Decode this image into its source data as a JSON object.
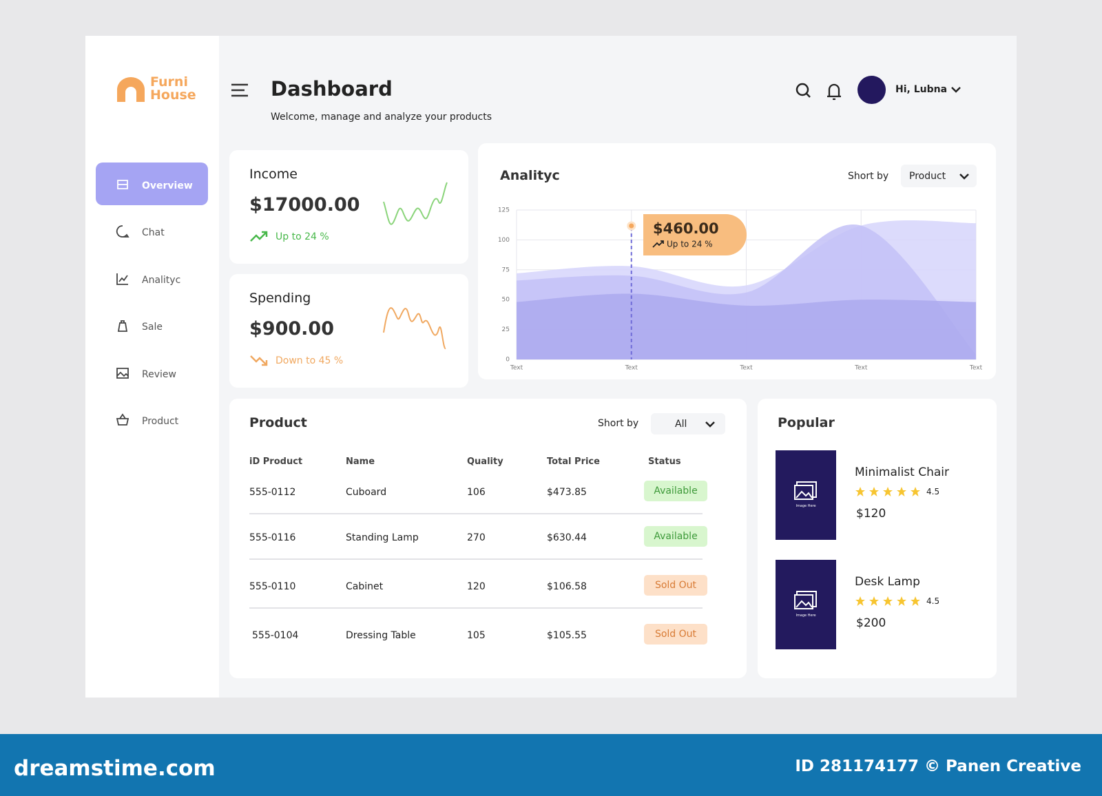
{
  "brand": {
    "line1": "Furni",
    "line2": "House"
  },
  "nav": [
    "Overview",
    "Chat",
    "Analityc",
    "Sale",
    "Review",
    "Product"
  ],
  "header": {
    "title": "Dashboard",
    "subtitle": "Welcome, manage and analyze your products",
    "greeting": "Hi, Lubna"
  },
  "income": {
    "label": "Income",
    "amount": "$17000.00",
    "change": "Up to 24 %"
  },
  "spending": {
    "label": "Spending",
    "amount": "$900.00",
    "change": "Down to 45 %"
  },
  "chart_data": {
    "type": "area",
    "title": "Analityc",
    "sort_label": "Short by",
    "sort_value": "Product",
    "categories": [
      "Text",
      "Text",
      "Text",
      "Text",
      "Text"
    ],
    "ylim": [
      0,
      125
    ],
    "yticks": [
      0,
      25,
      50,
      75,
      100,
      125
    ],
    "grid": true,
    "series": [
      {
        "color": "#d6d5fb",
        "values": [
          72,
          78,
          62,
          112,
          114
        ]
      },
      {
        "color": "#c3c1f7",
        "values": [
          66,
          70,
          56,
          112,
          4
        ]
      },
      {
        "color": "#aba9ef",
        "values": [
          48,
          55,
          45,
          50,
          48
        ]
      }
    ],
    "annotation": {
      "label": "$460.00",
      "note": "Up to 24 %"
    }
  },
  "product": {
    "title": "Product",
    "sort_label": "Short by",
    "sort_value": "All",
    "columns": [
      "iD Product",
      "Name",
      "Quality",
      "Total Price",
      "Status"
    ],
    "rows": [
      [
        "555-0112",
        "Cuboard",
        "106",
        "$473.85",
        "Available"
      ],
      [
        "555-0116",
        "Standing Lamp",
        "270",
        "$630.44",
        "Available"
      ],
      [
        "555-0110",
        "Cabinet",
        "120",
        "$106.58",
        "Sold Out"
      ],
      [
        "555-0104",
        "Dressing Table",
        "105",
        "$105.55",
        "Sold Out"
      ]
    ]
  },
  "popular": {
    "title": "Popular",
    "items": [
      {
        "name": "Minimalist Chair",
        "rating": 4.5,
        "price": "$120",
        "image_text": "Image Here"
      },
      {
        "name": "Desk Lamp",
        "rating": 4.5,
        "price": "$200",
        "image_text": "Image Here"
      }
    ]
  },
  "footer": {
    "site": "dreamstime.com",
    "credit": "ID 281174177 © Panen Creative"
  }
}
